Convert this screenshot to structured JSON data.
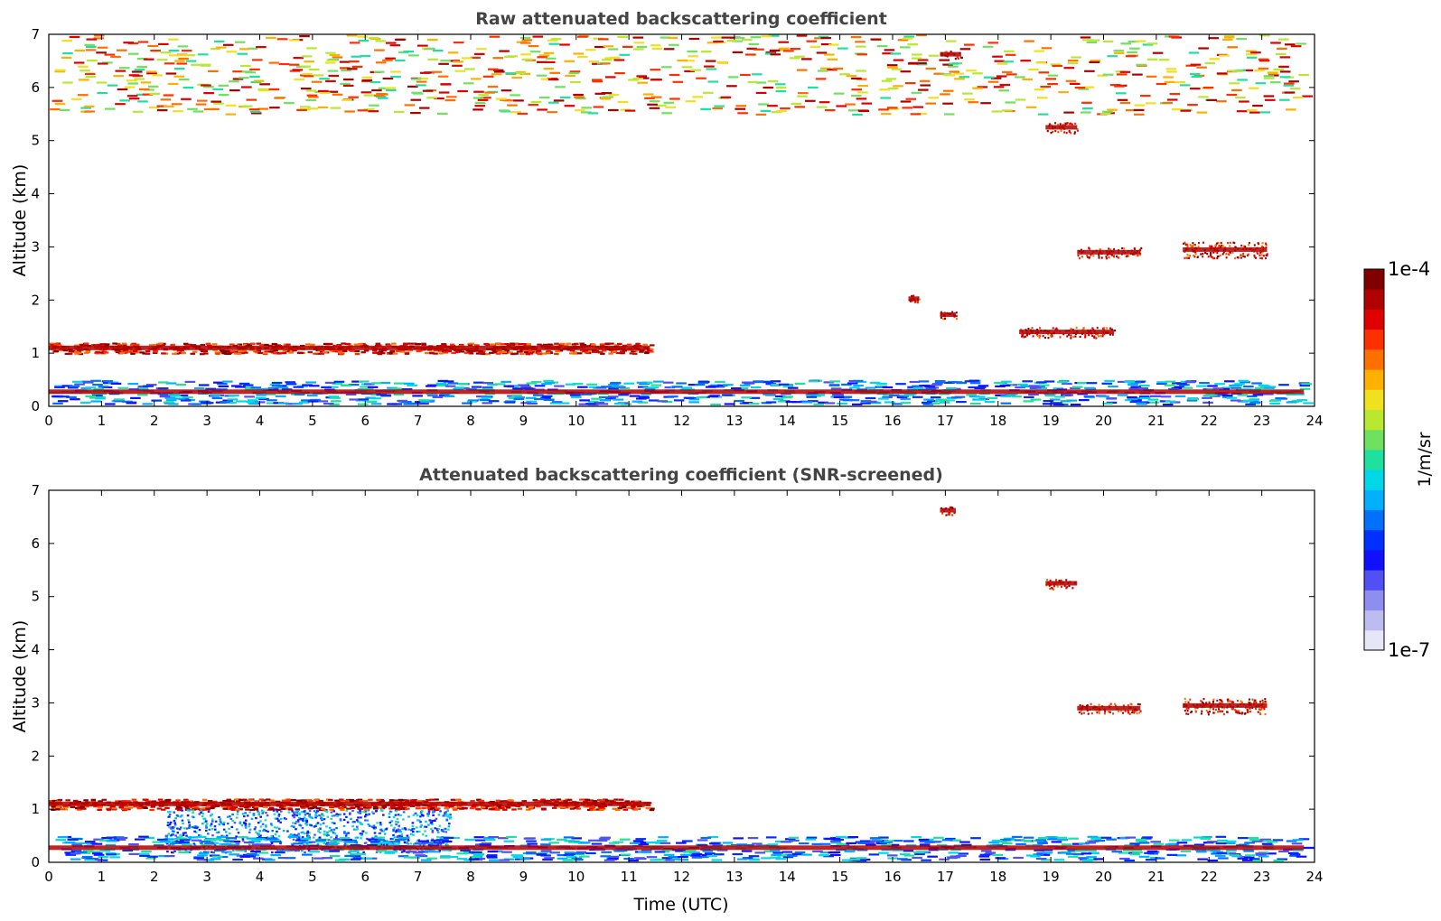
{
  "chart_data": [
    {
      "type": "heatmap",
      "title": "Raw attenuated backscattering coefficient",
      "xlabel": "",
      "ylabel": "Altitude (km)",
      "xlim": [
        0,
        24
      ],
      "ylim": [
        0,
        7
      ],
      "xticks": [
        "0",
        "1",
        "2",
        "3",
        "4",
        "5",
        "6",
        "7",
        "8",
        "9",
        "10",
        "11",
        "12",
        "13",
        "14",
        "15",
        "16",
        "17",
        "18",
        "19",
        "20",
        "21",
        "22",
        "23",
        "24"
      ],
      "yticks": [
        "0",
        "1",
        "2",
        "3",
        "4",
        "5",
        "6",
        "7"
      ],
      "features": [
        {
          "name": "low-cloud-layer",
          "x": [
            0,
            11.4
          ],
          "y": [
            1.0,
            1.2
          ]
        },
        {
          "name": "surface-aerosol-layer",
          "x": [
            0,
            23.8
          ],
          "y": [
            0.05,
            0.5
          ]
        },
        {
          "name": "upper-noise",
          "x": [
            0,
            23.8
          ],
          "y": [
            5.5,
            7.0
          ]
        },
        {
          "name": "cloud-6.6km",
          "x": [
            16.9,
            17.3
          ],
          "y": [
            6.55,
            6.7
          ]
        },
        {
          "name": "cloud-5.2km",
          "x": [
            18.9,
            19.5
          ],
          "y": [
            5.15,
            5.35
          ]
        },
        {
          "name": "cloud-2.9km",
          "x": [
            19.5,
            20.7
          ],
          "y": [
            2.8,
            3.0
          ]
        },
        {
          "name": "cloud-3.0km-b",
          "x": [
            21.5,
            23.1
          ],
          "y": [
            2.8,
            3.1
          ]
        },
        {
          "name": "cloud-2.0km",
          "x": [
            16.3,
            16.5
          ],
          "y": [
            1.95,
            2.1
          ]
        },
        {
          "name": "cloud-1.7km",
          "x": [
            16.9,
            17.2
          ],
          "y": [
            1.65,
            1.8
          ]
        },
        {
          "name": "cloud-1.4km",
          "x": [
            18.4,
            20.2
          ],
          "y": [
            1.3,
            1.5
          ]
        }
      ]
    },
    {
      "type": "heatmap",
      "title": "Attenuated backscattering coefficient (SNR-screened)",
      "xlabel": "Time (UTC)",
      "ylabel": "Altitude (km)",
      "xlim": [
        0,
        24
      ],
      "ylim": [
        0,
        7
      ],
      "xticks": [
        "0",
        "1",
        "2",
        "3",
        "4",
        "5",
        "6",
        "7",
        "8",
        "9",
        "10",
        "11",
        "12",
        "13",
        "14",
        "15",
        "16",
        "17",
        "18",
        "19",
        "20",
        "21",
        "22",
        "23",
        "24"
      ],
      "yticks": [
        "0",
        "1",
        "2",
        "3",
        "4",
        "5",
        "6",
        "7"
      ],
      "features": [
        {
          "name": "low-cloud-layer",
          "x": [
            0,
            11.4
          ],
          "y": [
            1.0,
            1.2
          ]
        },
        {
          "name": "aerosol-plumes",
          "x": [
            2.2,
            7.6
          ],
          "y": [
            0.2,
            1.0
          ]
        },
        {
          "name": "surface-aerosol-layer",
          "x": [
            0,
            23.8
          ],
          "y": [
            0.05,
            0.5
          ]
        },
        {
          "name": "cloud-6.6km",
          "x": [
            16.9,
            17.2
          ],
          "y": [
            6.55,
            6.7
          ]
        },
        {
          "name": "cloud-5.2km",
          "x": [
            18.9,
            19.5
          ],
          "y": [
            5.15,
            5.35
          ]
        },
        {
          "name": "cloud-2.9km",
          "x": [
            19.5,
            20.7
          ],
          "y": [
            2.8,
            3.0
          ]
        },
        {
          "name": "cloud-3.0km-b",
          "x": [
            21.5,
            23.1
          ],
          "y": [
            2.8,
            3.1
          ]
        }
      ]
    }
  ],
  "colorbar": {
    "max_label": "1e-4",
    "min_label": "1e-7",
    "unit_label": "1/m/sr",
    "colors": [
      "#e6e6f8",
      "#bcbcf0",
      "#8e8ef0",
      "#5050f5",
      "#1010ff",
      "#0030ff",
      "#0070ff",
      "#00b0ff",
      "#00d8e8",
      "#20e0a0",
      "#70e060",
      "#b8e830",
      "#f0e020",
      "#ffb000",
      "#ff7000",
      "#ff3000",
      "#e00000",
      "#b00000",
      "#800000"
    ]
  }
}
